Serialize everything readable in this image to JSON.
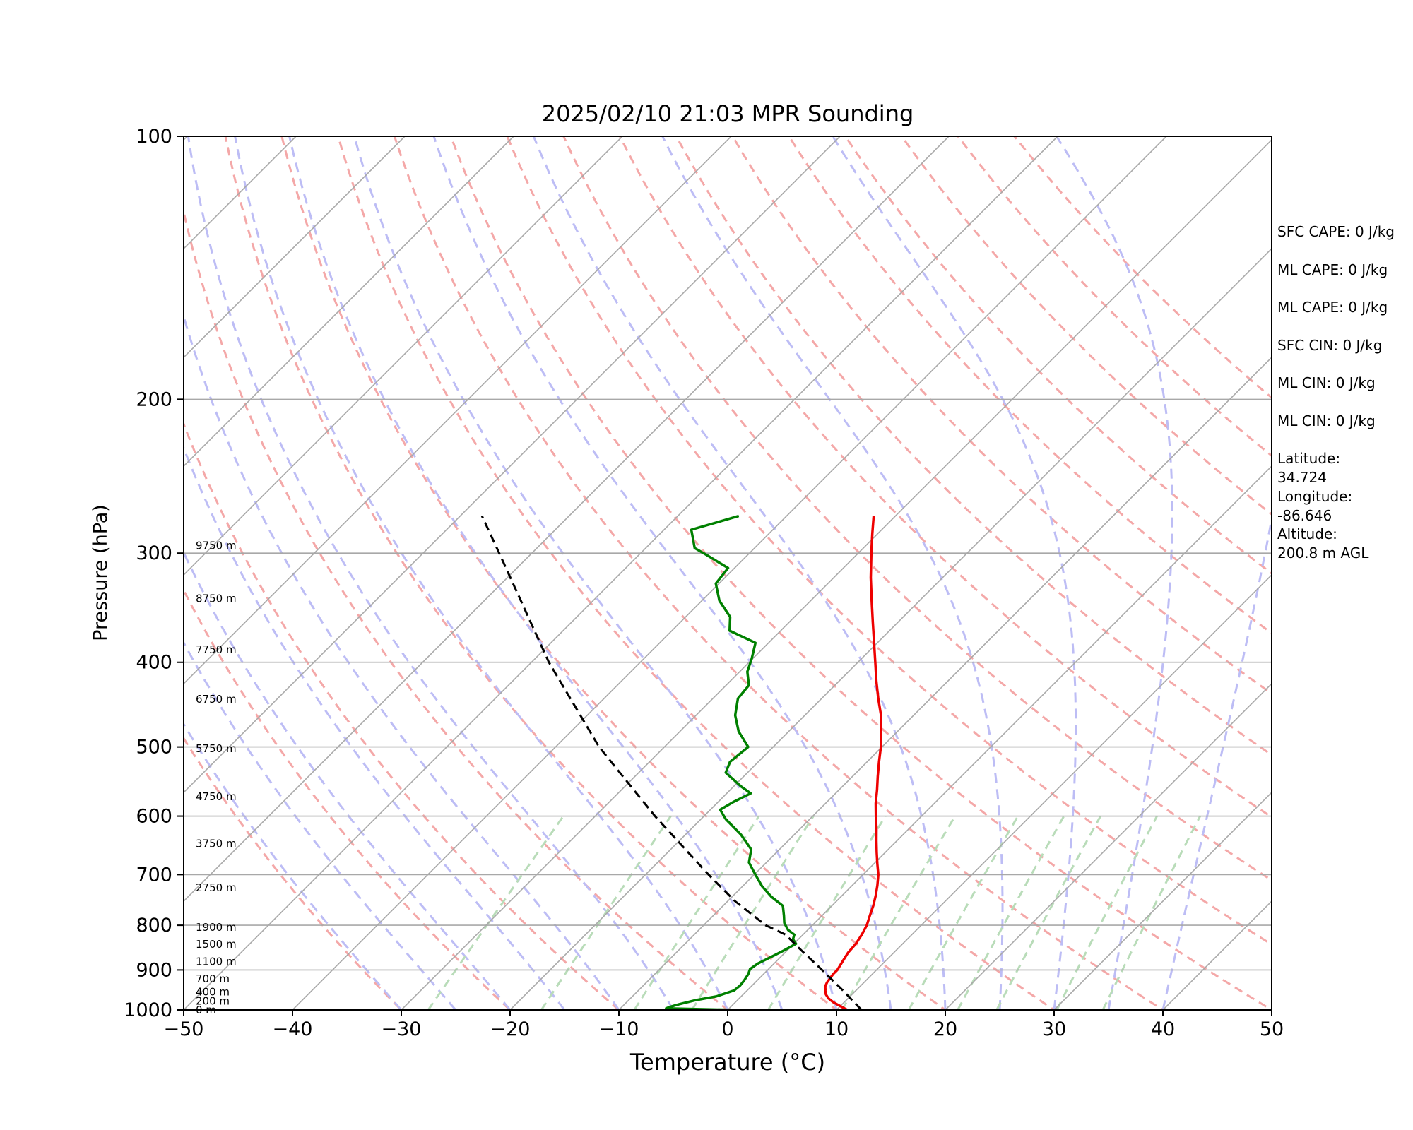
{
  "chart_data": {
    "type": "line",
    "title": "2025/02/10 21:03 MPR Sounding",
    "xlabel": "Temperature (°C)",
    "ylabel": "Pressure (hPa)",
    "xlim": [
      -50,
      50
    ],
    "ylim": [
      1000,
      100
    ],
    "y_scale": "log",
    "skew": true,
    "grid": true,
    "x_ticks": [
      -50,
      -40,
      -30,
      -20,
      -10,
      0,
      10,
      20,
      30,
      40,
      50
    ],
    "y_ticks": [
      1000,
      900,
      800,
      700,
      600,
      500,
      400,
      300,
      200,
      100
    ],
    "height_labels": [
      {
        "p": 1000,
        "label": "0 m"
      },
      {
        "p": 977,
        "label": "200 m"
      },
      {
        "p": 954,
        "label": "400 m"
      },
      {
        "p": 921,
        "label": "700 m"
      },
      {
        "p": 880,
        "label": "1100 m"
      },
      {
        "p": 841,
        "label": "1500 m"
      },
      {
        "p": 804,
        "label": "1900 m"
      },
      {
        "p": 725,
        "label": "2750 m"
      },
      {
        "p": 645,
        "label": "3750 m"
      },
      {
        "p": 570,
        "label": "4750 m"
      },
      {
        "p": 502,
        "label": "5750 m"
      },
      {
        "p": 441,
        "label": "6750 m"
      },
      {
        "p": 387,
        "label": "7750 m"
      },
      {
        "p": 338,
        "label": "8750 m"
      },
      {
        "p": 294,
        "label": "9750 m"
      }
    ],
    "series": [
      {
        "color": "#ee0000",
        "values": [
          [
            1000,
            11.0
          ],
          [
            990,
            10.0
          ],
          [
            980,
            9.0
          ],
          [
            970,
            8.2
          ],
          [
            960,
            7.6
          ],
          [
            950,
            7.2
          ],
          [
            940,
            6.8
          ],
          [
            930,
            6.6
          ],
          [
            920,
            6.5
          ],
          [
            910,
            6.4
          ],
          [
            900,
            6.4
          ],
          [
            880,
            6.1
          ],
          [
            860,
            5.8
          ],
          [
            840,
            5.7
          ],
          [
            820,
            5.4
          ],
          [
            800,
            5.0
          ],
          [
            780,
            4.4
          ],
          [
            760,
            3.8
          ],
          [
            740,
            3.1
          ],
          [
            720,
            2.3
          ],
          [
            700,
            1.4
          ],
          [
            680,
            0.3
          ],
          [
            660,
            -0.8
          ],
          [
            640,
            -1.9
          ],
          [
            620,
            -3.0
          ],
          [
            600,
            -4.2
          ],
          [
            580,
            -5.4
          ],
          [
            560,
            -6.5
          ],
          [
            540,
            -7.7
          ],
          [
            520,
            -8.9
          ],
          [
            500,
            -10.1
          ],
          [
            480,
            -11.5
          ],
          [
            460,
            -13.0
          ],
          [
            440,
            -14.8
          ],
          [
            420,
            -16.6
          ],
          [
            400,
            -18.4
          ],
          [
            380,
            -20.3
          ],
          [
            360,
            -22.3
          ],
          [
            340,
            -24.4
          ],
          [
            320,
            -26.6
          ],
          [
            300,
            -28.8
          ],
          [
            285,
            -30.5
          ],
          [
            272,
            -32.0
          ]
        ]
      },
      {
        "color": "#008000",
        "values": [
          [
            1000,
            0.8
          ],
          [
            996,
            -5.8
          ],
          [
            992,
            -5.6
          ],
          [
            985,
            -5.0
          ],
          [
            975,
            -3.9
          ],
          [
            965,
            -2.3
          ],
          [
            950,
            -1.2
          ],
          [
            938,
            -1.1
          ],
          [
            925,
            -1.2
          ],
          [
            910,
            -1.4
          ],
          [
            898,
            -1.7
          ],
          [
            885,
            -1.5
          ],
          [
            870,
            -0.9
          ],
          [
            855,
            -0.3
          ],
          [
            840,
            0.2
          ],
          [
            830,
            -0.5
          ],
          [
            820,
            -0.8
          ],
          [
            810,
            -1.8
          ],
          [
            795,
            -2.8
          ],
          [
            780,
            -3.5
          ],
          [
            760,
            -4.5
          ],
          [
            742,
            -6.4
          ],
          [
            722,
            -8.2
          ],
          [
            700,
            -9.9
          ],
          [
            678,
            -11.6
          ],
          [
            655,
            -12.6
          ],
          [
            630,
            -14.9
          ],
          [
            605,
            -17.7
          ],
          [
            590,
            -19.1
          ],
          [
            578,
            -18.6
          ],
          [
            565,
            -17.8
          ],
          [
            555,
            -19.3
          ],
          [
            535,
            -22.0
          ],
          [
            520,
            -22.6
          ],
          [
            500,
            -22.3
          ],
          [
            480,
            -24.6
          ],
          [
            460,
            -26.4
          ],
          [
            440,
            -27.7
          ],
          [
            425,
            -27.9
          ],
          [
            410,
            -29.3
          ],
          [
            396,
            -30.1
          ],
          [
            380,
            -31.2
          ],
          [
            368,
            -34.7
          ],
          [
            355,
            -35.9
          ],
          [
            340,
            -38.4
          ],
          [
            325,
            -40.3
          ],
          [
            312,
            -40.6
          ],
          [
            302,
            -43.6
          ],
          [
            296,
            -45.5
          ],
          [
            282,
            -47.5
          ],
          [
            272,
            -44.4
          ]
        ]
      },
      {
        "color": "#000000",
        "dashed": true,
        "values": [
          [
            1000,
            12.3
          ],
          [
            950,
            8.8
          ],
          [
            900,
            5.0
          ],
          [
            850,
            0.9
          ],
          [
            820,
            -1.6
          ],
          [
            800,
            -4.3
          ],
          [
            750,
            -9.4
          ],
          [
            700,
            -14.2
          ],
          [
            600,
            -24.5
          ],
          [
            500,
            -36.0
          ],
          [
            400,
            -48.4
          ],
          [
            300,
            -63.0
          ],
          [
            272,
            -68.0
          ]
        ]
      }
    ]
  },
  "stats": [
    {
      "label": "SFC CAPE:",
      "value": "0 J/kg",
      "break": false
    },
    {
      "label": "ML CAPE:",
      "value": "0 J/kg",
      "break": false
    },
    {
      "label": "ML CAPE:",
      "value": "0 J/kg",
      "break": false
    },
    {
      "label": "SFC CIN:",
      "value": "0 J/kg",
      "break": false
    },
    {
      "label": "ML CIN:",
      "value": "0 J/kg",
      "break": false
    },
    {
      "label": "ML CIN:",
      "value": "0 J/kg",
      "break": false
    },
    {
      "label": "Latitude:",
      "value": "34.724",
      "break": true
    },
    {
      "label": "Longitude:",
      "value": "-86.646",
      "break": true
    },
    {
      "label": "Altitude:",
      "value": "200.8 m AGL",
      "break": true
    }
  ]
}
